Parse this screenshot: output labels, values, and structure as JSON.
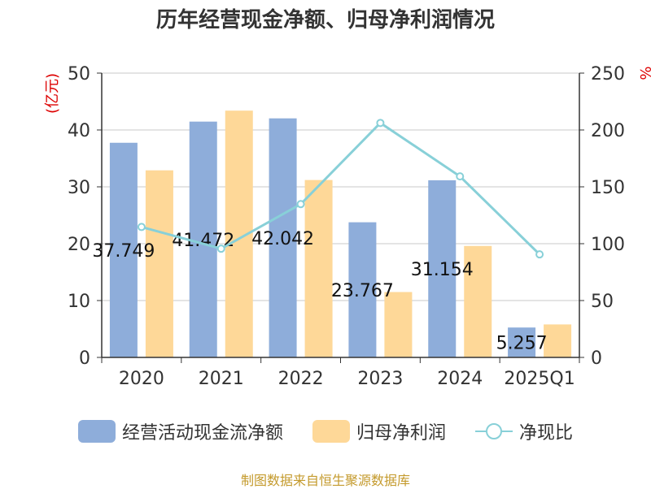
{
  "title": "历年经营现金净额、归母净利润情况",
  "source": "制图数据来自恒生聚源数据库",
  "colors": {
    "cashflow": "#8eadda",
    "profit": "#fed898",
    "ratio": "#88d0d8",
    "axis": "#333333",
    "grid": "#c8c8c8",
    "unit": "#dd0000",
    "source": "#c49a2c"
  },
  "chart_data": {
    "type": "bar",
    "title": "历年经营现金净额、归母净利润情况",
    "categories": [
      "2020",
      "2021",
      "2022",
      "2023",
      "2024",
      "2025Q1"
    ],
    "ylabel_left": "(亿元)",
    "ylabel_right": "%",
    "ylim_left": [
      0,
      50
    ],
    "ylim_right": [
      0,
      250
    ],
    "yticks_left": [
      "0",
      "10",
      "20",
      "30",
      "40",
      "50"
    ],
    "yticks_right": [
      "0",
      "50",
      "100",
      "150",
      "200",
      "250"
    ],
    "grid": true,
    "legend_position": "bottom",
    "series": [
      {
        "name": "经营活动现金流净额",
        "kind": "bar",
        "axis": "left",
        "values": [
          37.749,
          41.472,
          42.042,
          23.767,
          31.154,
          5.257
        ],
        "labels": [
          "37.749",
          "41.472",
          "42.042",
          "23.767",
          "31.154",
          "5.257"
        ]
      },
      {
        "name": "归母净利润",
        "kind": "bar",
        "axis": "left",
        "values": [
          32.9,
          43.4,
          31.2,
          11.5,
          19.6,
          5.8
        ]
      },
      {
        "name": "净现比",
        "kind": "line",
        "axis": "right",
        "values": [
          114.7,
          95.6,
          134.8,
          206.2,
          159.2,
          90.6
        ]
      }
    ]
  }
}
